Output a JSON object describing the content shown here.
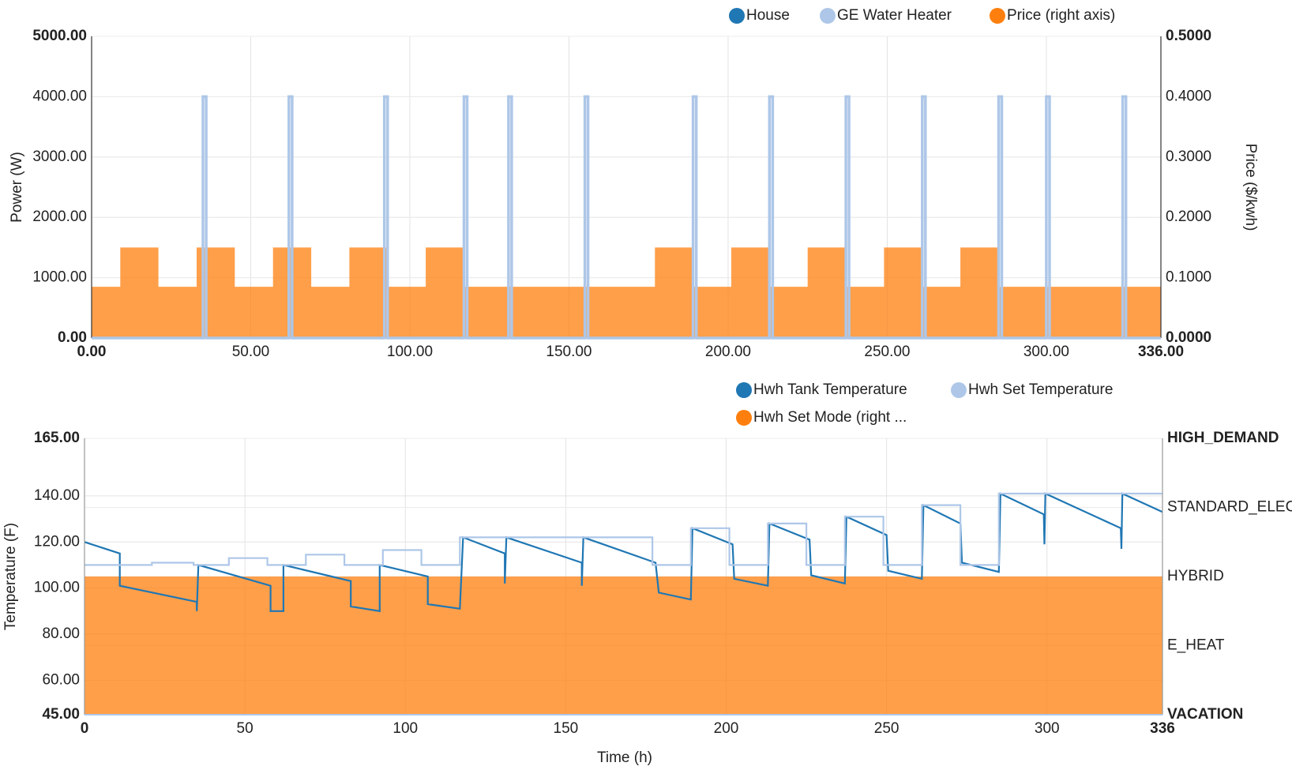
{
  "chart_data": [
    {
      "type": "line",
      "ylabel": "Power (W)",
      "y2label": "Price ($/kwh)",
      "xlim": [
        0,
        336
      ],
      "xticks": [
        {
          "value": 0,
          "label": "0.00"
        },
        {
          "value": 50,
          "label": "50.00"
        },
        {
          "value": 100,
          "label": "100.00"
        },
        {
          "value": 150,
          "label": "150.00"
        },
        {
          "value": 200,
          "label": "200.00"
        },
        {
          "value": 250,
          "label": "250.00"
        },
        {
          "value": 300,
          "label": "300.00"
        },
        {
          "value": 336,
          "label": "336.00"
        }
      ],
      "ylim": [
        0,
        5000
      ],
      "yticks": [
        {
          "value": 0,
          "label": "0.00"
        },
        {
          "value": 1000,
          "label": "1000.00"
        },
        {
          "value": 2000,
          "label": "2000.00"
        },
        {
          "value": 3000,
          "label": "3000.00"
        },
        {
          "value": 4000,
          "label": "4000.00"
        },
        {
          "value": 5000,
          "label": "5000.00"
        }
      ],
      "y2lim": [
        0,
        0.5
      ],
      "y2ticks": [
        {
          "value": 0,
          "label": "0.0000"
        },
        {
          "value": 0.1,
          "label": "0.1000"
        },
        {
          "value": 0.2,
          "label": "0.2000"
        },
        {
          "value": 0.3,
          "label": "0.3000"
        },
        {
          "value": 0.4,
          "label": "0.4000"
        },
        {
          "value": 0.5,
          "label": "0.5000"
        }
      ],
      "grid": true,
      "series": [
        {
          "name": "House",
          "color": "#1f77b4"
        },
        {
          "name": "GE Water Heater",
          "color": "#aec7e8",
          "step": true,
          "x": [
            0,
            35,
            35,
            36,
            36,
            62,
            62,
            63,
            63,
            92,
            92,
            93,
            93,
            117,
            117,
            118,
            118,
            131,
            131,
            132,
            132,
            155,
            155,
            156,
            156,
            189,
            189,
            190,
            190,
            213,
            213,
            214,
            214,
            237,
            237,
            238,
            238,
            261,
            261,
            262,
            262,
            285,
            285,
            286,
            286,
            300,
            300,
            301,
            301,
            324,
            324,
            325,
            325,
            336
          ],
          "values": [
            0,
            0,
            4000,
            4000,
            0,
            0,
            4000,
            4000,
            0,
            0,
            4000,
            4000,
            0,
            0,
            4000,
            4000,
            0,
            0,
            4000,
            4000,
            0,
            0,
            4000,
            4000,
            0,
            0,
            4000,
            4000,
            0,
            0,
            4000,
            4000,
            0,
            0,
            4000,
            4000,
            0,
            0,
            4000,
            4000,
            0,
            0,
            4000,
            4000,
            0,
            0,
            4000,
            4000,
            0,
            0,
            4000,
            4000,
            0,
            0
          ]
        },
        {
          "name": "Price (right axis)",
          "color": "#ff7f0e",
          "axis": "y2",
          "step": true,
          "fill": true,
          "x": [
            0,
            9,
            21,
            33,
            45,
            57,
            69,
            81,
            93,
            105,
            117,
            177,
            189,
            201,
            213,
            225,
            237,
            249,
            261,
            273,
            285,
            336
          ],
          "values": [
            0.085,
            0.15,
            0.085,
            0.15,
            0.085,
            0.15,
            0.085,
            0.15,
            0.085,
            0.15,
            0.085,
            0.15,
            0.085,
            0.15,
            0.085,
            0.15,
            0.085,
            0.15,
            0.085,
            0.15,
            0.085,
            0.085
          ]
        }
      ]
    },
    {
      "type": "line",
      "ylabel": "Temperature (F)",
      "xlabel": "Time (h)",
      "xlim": [
        0,
        336
      ],
      "xticks": [
        0,
        50,
        100,
        150,
        200,
        250,
        300,
        336
      ],
      "ylim": [
        45,
        165
      ],
      "yticks": [
        {
          "value": 45,
          "label": "45.00"
        },
        {
          "value": 60,
          "label": "60.00"
        },
        {
          "value": 80,
          "label": "80.00"
        },
        {
          "value": 100,
          "label": "100.00"
        },
        {
          "value": 120,
          "label": "120.00"
        },
        {
          "value": 140,
          "label": "140.00"
        },
        {
          "value": 165,
          "label": "165.00"
        }
      ],
      "y2lim": [
        0,
        4
      ],
      "y2ticks": [
        {
          "value": 0,
          "label": "VACATION"
        },
        {
          "value": 1,
          "label": "E_HEAT"
        },
        {
          "value": 2,
          "label": "HYBRID"
        },
        {
          "value": 3,
          "label": "STANDARD_ELECTRIC"
        },
        {
          "value": 4,
          "label": "HIGH_DEMAND"
        }
      ],
      "grid": true,
      "series": [
        {
          "name": "Hwh Tank Temperature",
          "color": "#1f77b4",
          "x": [
            0,
            11,
            11,
            35,
            35,
            35.5,
            58,
            58,
            62,
            62,
            83,
            83,
            92,
            92,
            107,
            107,
            117,
            118,
            131,
            131,
            131.5,
            155,
            155,
            155.5,
            178,
            179,
            189,
            189.5,
            202,
            202.5,
            213,
            213.5,
            226,
            226.5,
            237,
            237.5,
            250,
            250.5,
            261,
            261.5,
            273,
            273.5,
            285,
            285.5,
            299,
            299.2,
            299.5,
            323,
            323.2,
            323.5,
            336
          ],
          "values": [
            120,
            115,
            101,
            94,
            90,
            110,
            101,
            90,
            90,
            110,
            103,
            92,
            90,
            110,
            105,
            93,
            91,
            122,
            115,
            102,
            122,
            111,
            101,
            122,
            111,
            98,
            95,
            126,
            119,
            104,
            101,
            128,
            121,
            105.5,
            102,
            131,
            123,
            107.5,
            104,
            136,
            128,
            111,
            107,
            141,
            132,
            119,
            141,
            126,
            117,
            141,
            133
          ]
        },
        {
          "name": "Hwh Set Temperature",
          "color": "#aec7e8",
          "step": true,
          "x": [
            0,
            21,
            34,
            45,
            57,
            69,
            81,
            93,
            105,
            117,
            177,
            189,
            201,
            213,
            225,
            237,
            249,
            261,
            273,
            285,
            336
          ],
          "values": [
            110,
            111,
            110,
            113,
            110,
            114.5,
            110,
            116.5,
            110,
            122,
            110,
            126,
            110,
            128,
            110,
            131,
            110,
            136,
            110,
            141,
            141
          ]
        },
        {
          "name": "Hwh Set Mode (right ...",
          "color": "#ff7f0e",
          "axis": "y2",
          "step": true,
          "fill": true,
          "x": [
            0,
            336
          ],
          "values": [
            2,
            2
          ]
        }
      ]
    }
  ]
}
